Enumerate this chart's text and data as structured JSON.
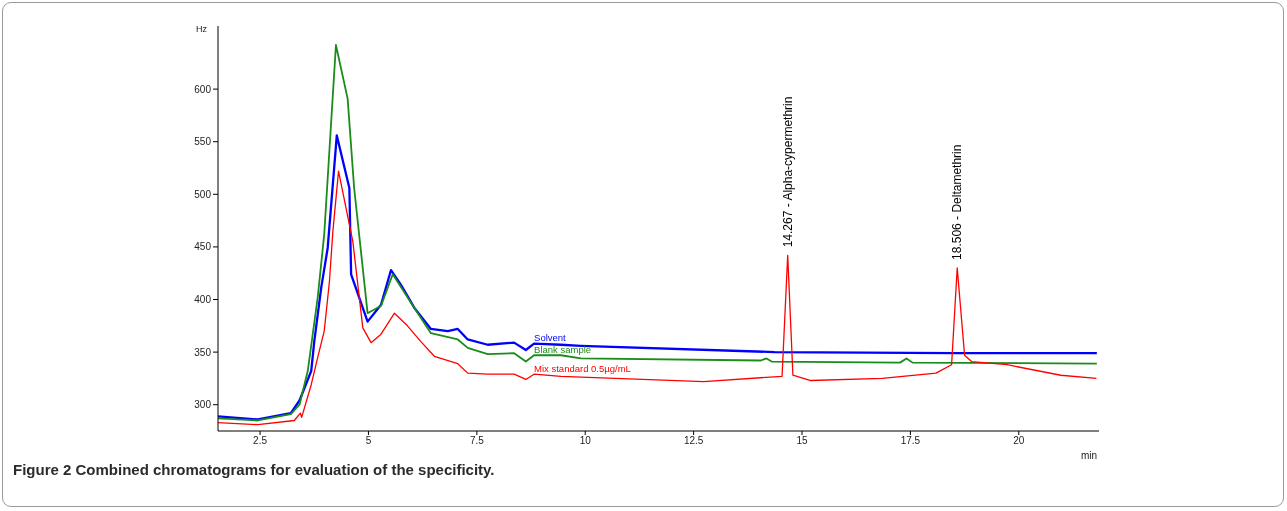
{
  "chart_data": {
    "type": "line",
    "title": "Figure 2 Combined chromatograms for evaluation of the specificity.",
    "xlabel": "min",
    "ylabel": "Hz",
    "xlim": [
      1.53,
      21.85
    ],
    "ylim": [
      275,
      660
    ],
    "xticks": [
      2.5,
      5,
      7.5,
      10,
      12.5,
      15,
      17.5,
      20
    ],
    "yticks": [
      300,
      350,
      400,
      450,
      500,
      550,
      600
    ],
    "grid": false,
    "legend": false,
    "marker": "none",
    "line_style": "solid",
    "series": [
      {
        "name": "Solvent",
        "color": "#0000ff",
        "x": [
          1.53,
          2.45,
          3.21,
          3.41,
          3.68,
          3.75,
          3.91,
          4.06,
          4.27,
          4.56,
          4.6,
          4.98,
          5.29,
          5.52,
          5.75,
          6.06,
          6.44,
          6.83,
          7.06,
          7.29,
          7.75,
          8.36,
          8.63,
          8.82,
          9.44,
          9.9,
          14.37,
          18.5,
          21.8
        ],
        "values": [
          289,
          286,
          292,
          304,
          332,
          360,
          411,
          449,
          556,
          506,
          424,
          379,
          395,
          428,
          414,
          392,
          372,
          370,
          372,
          362,
          357,
          359,
          352,
          358,
          357,
          356,
          350,
          349,
          349
        ]
      },
      {
        "name": "Blank sample",
        "color": "#1a8c1a",
        "x": [
          1.53,
          2.45,
          3.21,
          3.41,
          3.6,
          3.83,
          3.98,
          4.25,
          4.52,
          4.67,
          4.98,
          5.29,
          5.56,
          6.06,
          6.44,
          7.06,
          7.29,
          7.75,
          8.36,
          8.63,
          8.82,
          9.44,
          9.9,
          14.05,
          14.18,
          14.3,
          17.26,
          17.41,
          17.55,
          21.8
        ],
        "values": [
          287,
          285,
          291,
          300,
          332,
          402,
          462,
          642,
          591,
          506,
          387,
          394,
          424,
          392,
          368,
          362,
          354,
          348,
          349,
          341,
          347,
          347,
          344,
          342,
          344,
          341,
          340,
          344,
          340,
          339
        ]
      },
      {
        "name": "Mix standard 0.5µg/mL",
        "color": "#ff0000",
        "x": [
          1.53,
          2.45,
          3.29,
          3.43,
          3.46,
          3.68,
          3.83,
          3.98,
          4.1,
          4.18,
          4.31,
          4.64,
          4.87,
          5.06,
          5.29,
          5.6,
          5.9,
          6.21,
          6.52,
          7.06,
          7.29,
          7.75,
          8.36,
          8.63,
          8.82,
          9.44,
          12.73,
          14.54,
          14.67,
          14.79,
          15.2,
          16.85,
          18.09,
          18.45,
          18.58,
          18.75,
          18.91,
          19.73,
          20.97,
          21.79
        ],
        "values": [
          283,
          281,
          285,
          292,
          288,
          319,
          345,
          370,
          417,
          465,
          522,
          455,
          373,
          359,
          367,
          387,
          375,
          360,
          346,
          339,
          330,
          329,
          329,
          324,
          329,
          327,
          322,
          327,
          442,
          328,
          323,
          325,
          330,
          338,
          430,
          347,
          341,
          338,
          328,
          325
        ]
      }
    ],
    "annotations": [
      {
        "text": "14.267 -  Alpha-cypermethrin",
        "x": 14.67,
        "y": 442
      },
      {
        "text": "18.506 -  Deltamethrin",
        "x": 18.58,
        "y": 430
      }
    ]
  }
}
